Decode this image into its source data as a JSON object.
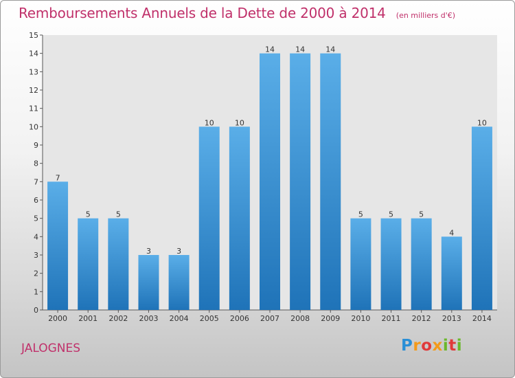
{
  "header": {
    "title": "Remboursements Annuels de la Dette de 2000 à 2014",
    "subtitle": "(en milliers d'€)"
  },
  "footer": {
    "place": "JALOGNES",
    "logo_letters": [
      "P",
      "r",
      "o",
      "x",
      "i",
      "t",
      "i"
    ]
  },
  "colors": {
    "title": "#c0306a",
    "bar_light": "#5aaee8",
    "bar_dark": "#1f73b8"
  },
  "chart_data": {
    "type": "bar",
    "title": "Remboursements Annuels de la Dette de 2000 à 2014",
    "subtitle": "(en milliers d'€)",
    "xlabel": "",
    "ylabel": "",
    "categories": [
      "2000",
      "2001",
      "2002",
      "2003",
      "2004",
      "2005",
      "2006",
      "2007",
      "2008",
      "2009",
      "2010",
      "2011",
      "2012",
      "2013",
      "2014"
    ],
    "values": [
      7,
      5,
      5,
      3,
      3,
      10,
      10,
      14,
      14,
      14,
      5,
      5,
      5,
      4,
      10
    ],
    "ylim": [
      0,
      15
    ],
    "yticks": [
      0,
      1,
      2,
      3,
      4,
      5,
      6,
      7,
      8,
      9,
      10,
      11,
      12,
      13,
      14,
      15
    ],
    "grid": false,
    "legend": "none"
  }
}
